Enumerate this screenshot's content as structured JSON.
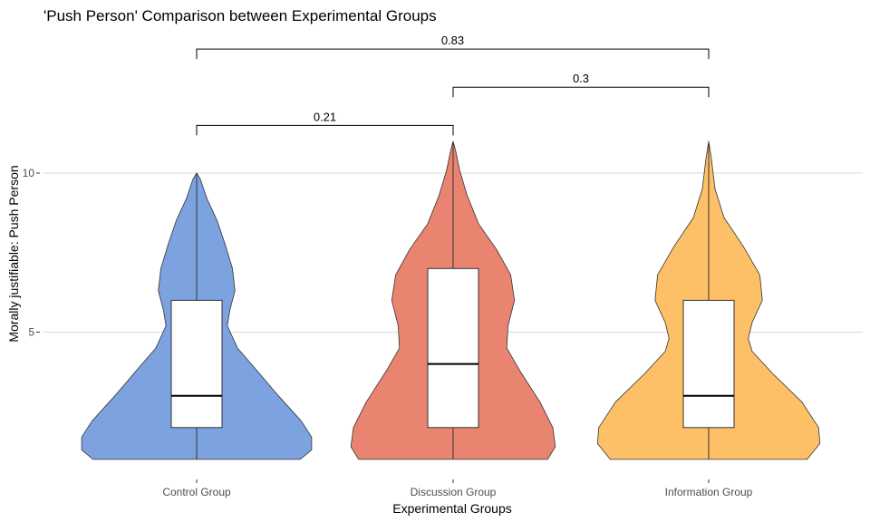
{
  "chart_data": {
    "type": "violin",
    "title": "'Push Person' Comparison between Experimental Groups",
    "xlabel": "Experimental Groups",
    "ylabel": "Morally justifiable: Push Person",
    "ylim": [
      0.6,
      11.9
    ],
    "y_ticks": [
      5,
      10
    ],
    "grid": "horizontal-major",
    "legend": "none",
    "categories": [
      "Control Group",
      "Discussion Group",
      "Information Group"
    ],
    "groups": [
      {
        "name": "Control Group",
        "color": "#7da2e0",
        "range": [
          1,
          10
        ],
        "box": {
          "min": 1,
          "q1": 2,
          "median": 3,
          "q3": 6,
          "max": 10
        },
        "density": [
          [
            1.0,
            0.81
          ],
          [
            1.3,
            0.9
          ],
          [
            1.7,
            0.9
          ],
          [
            2.2,
            0.82
          ],
          [
            3.0,
            0.64
          ],
          [
            3.8,
            0.47
          ],
          [
            4.5,
            0.32
          ],
          [
            5.2,
            0.24
          ],
          [
            5.7,
            0.26
          ],
          [
            6.3,
            0.3
          ],
          [
            7.0,
            0.28
          ],
          [
            7.8,
            0.22
          ],
          [
            8.5,
            0.16
          ],
          [
            9.2,
            0.08
          ],
          [
            9.8,
            0.03
          ],
          [
            10.0,
            0.0
          ]
        ]
      },
      {
        "name": "Discussion Group",
        "color": "#e98470",
        "range": [
          1,
          11
        ],
        "box": {
          "min": 1,
          "q1": 2,
          "median": 4,
          "q3": 7,
          "max": 11
        },
        "density": [
          [
            1.0,
            0.74
          ],
          [
            1.4,
            0.8
          ],
          [
            2.0,
            0.78
          ],
          [
            2.8,
            0.68
          ],
          [
            3.8,
            0.52
          ],
          [
            4.5,
            0.42
          ],
          [
            5.2,
            0.43
          ],
          [
            6.0,
            0.48
          ],
          [
            6.8,
            0.45
          ],
          [
            7.6,
            0.34
          ],
          [
            8.4,
            0.2
          ],
          [
            9.3,
            0.11
          ],
          [
            10.1,
            0.05
          ],
          [
            10.7,
            0.02
          ],
          [
            11.0,
            0.0
          ]
        ]
      },
      {
        "name": "Information Group",
        "color": "#fec067",
        "range": [
          1,
          11
        ],
        "box": {
          "min": 1,
          "q1": 2,
          "median": 3,
          "q3": 6,
          "max": 11
        },
        "density": [
          [
            1.0,
            0.77
          ],
          [
            1.5,
            0.87
          ],
          [
            2.0,
            0.86
          ],
          [
            2.8,
            0.73
          ],
          [
            3.7,
            0.5
          ],
          [
            4.4,
            0.34
          ],
          [
            4.8,
            0.31
          ],
          [
            5.3,
            0.34
          ],
          [
            6.0,
            0.42
          ],
          [
            6.8,
            0.4
          ],
          [
            7.7,
            0.27
          ],
          [
            8.6,
            0.12
          ],
          [
            9.5,
            0.05
          ],
          [
            10.5,
            0.02
          ],
          [
            11.0,
            0.0
          ]
        ]
      }
    ],
    "comparisons": [
      {
        "groups": [
          "Control Group",
          "Discussion Group"
        ],
        "p_label": "0.21",
        "bracket_y": 11.5
      },
      {
        "groups": [
          "Discussion Group",
          "Information Group"
        ],
        "p_label": "0.3",
        "bracket_y": 12.7
      },
      {
        "groups": [
          "Control Group",
          "Information Group"
        ],
        "p_label": "0.83",
        "bracket_y": 13.9
      }
    ]
  }
}
